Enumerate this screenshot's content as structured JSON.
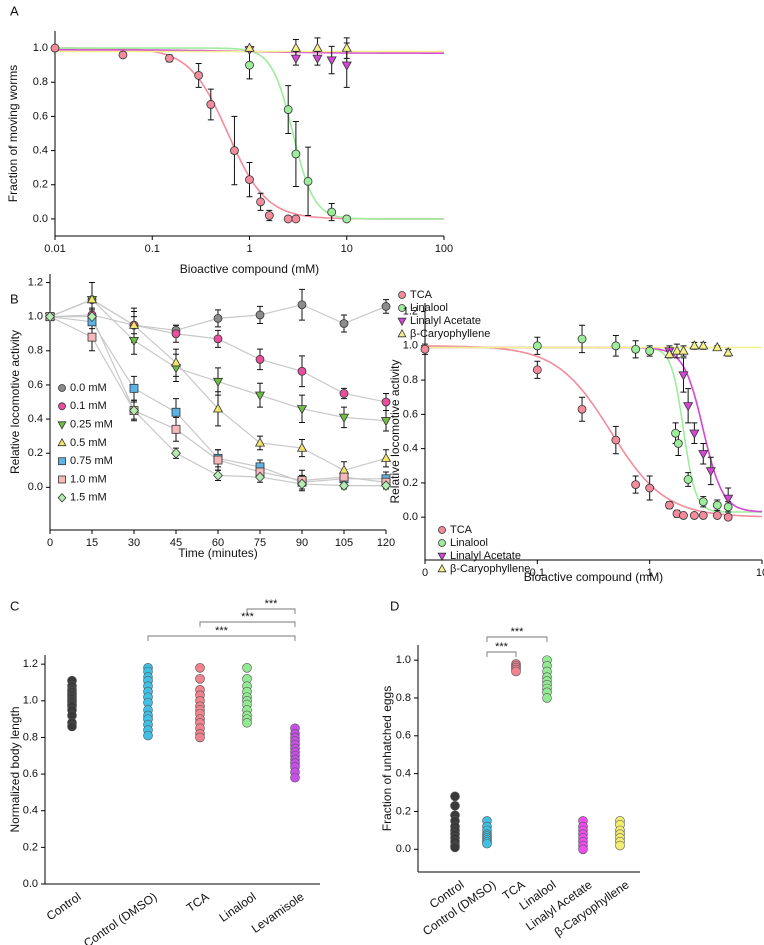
{
  "chart_data": [
    {
      "type": "scatter",
      "panel": "A",
      "x_label": "Bioactive compound (mM)",
      "y_label": "Fraction of moving worms",
      "xlog": true,
      "xlim": [
        0.01,
        100
      ],
      "xticks": [
        0.01,
        0.1,
        1,
        10,
        100
      ],
      "ylim": [
        -0.1,
        1.1
      ],
      "yticks": [
        {
          "value": 0,
          "label": "0.0"
        },
        0.2,
        0.4,
        0.6,
        0.8,
        {
          "value": 1,
          "label": "1.0"
        }
      ],
      "series": [
        {
          "name": "TCA",
          "color": "#f28b9b",
          "marker": "circle",
          "x": [
            0.01,
            0.05,
            0.15,
            0.3,
            0.4,
            0.7,
            1.0,
            1.3,
            1.6,
            2.5,
            3.0
          ],
          "values": [
            1.0,
            0.96,
            0.94,
            0.84,
            0.67,
            0.4,
            0.23,
            0.1,
            0.02,
            0.0,
            0.0
          ],
          "errors": [
            0.01,
            0.01,
            0.02,
            0.07,
            0.09,
            0.2,
            0.1,
            0.05,
            0.03,
            0.01,
            0.01
          ],
          "fit": {
            "top": 1,
            "bottom": 0,
            "ec50": 0.6,
            "slope": 2.2
          }
        },
        {
          "name": "Linalool",
          "color": "#9ded9d",
          "marker": "circle",
          "x": [
            1.0,
            2.5,
            3.0,
            4.0,
            7.0,
            10.0
          ],
          "values": [
            0.9,
            0.64,
            0.38,
            0.22,
            0.04,
            0.0
          ],
          "errors": [
            0.08,
            0.14,
            0.19,
            0.2,
            0.05,
            0.01
          ],
          "fit": {
            "top": 1,
            "bottom": 0,
            "ec50": 2.8,
            "slope": 4
          }
        },
        {
          "name": "Linalyl Acetate",
          "color": "#d447d4",
          "marker": "triangle-down",
          "x": [
            1.0,
            3.0,
            5.0,
            7.0,
            10.0
          ],
          "values": [
            0.99,
            0.94,
            0.94,
            0.93,
            0.9
          ],
          "errors": [
            0.01,
            0.04,
            0.04,
            0.08,
            0.13
          ],
          "fit": {
            "top": 0.99,
            "bottom": 0.97,
            "ec50": 1,
            "slope": 1
          }
        },
        {
          "name": "β-Caryophyllene",
          "color": "#f5f08a",
          "marker": "triangle-up",
          "x": [
            1.0,
            3.0,
            5.0,
            10.0
          ],
          "values": [
            1.0,
            1.0,
            1.0,
            1.0
          ],
          "errors": [
            0.01,
            0.05,
            0.06,
            0.06
          ],
          "fit": {
            "top": 0.98,
            "bottom": 0.98,
            "ec50": 1,
            "slope": 1
          }
        }
      ]
    },
    {
      "type": "line",
      "panel": "B",
      "x_label": "Time  (minutes)",
      "y_label": "Relative locomotive activity",
      "x": [
        0,
        15,
        30,
        45,
        60,
        75,
        90,
        105,
        120
      ],
      "xlim": [
        0,
        120
      ],
      "xticks": [
        0,
        15,
        30,
        45,
        60,
        75,
        90,
        105,
        120
      ],
      "ylim": [
        -0.25,
        1.25
      ],
      "yticks": [
        {
          "value": 0,
          "label": "0.0"
        },
        0.2,
        0.4,
        0.6,
        0.8,
        {
          "value": 1,
          "label": "1.0"
        },
        1.2
      ],
      "series": [
        {
          "name": "0.0 mM",
          "color": "#8c8c8c",
          "marker": "circle",
          "values": [
            1.0,
            1.1,
            0.95,
            0.92,
            0.99,
            1.01,
            1.07,
            0.96,
            1.06
          ],
          "errors": [
            0.01,
            0.1,
            0.05,
            0.03,
            0.05,
            0.05,
            0.09,
            0.05,
            0.04
          ]
        },
        {
          "name": "0.1 mM",
          "color": "#e8509e",
          "marker": "circle",
          "values": [
            1.0,
            1.01,
            0.95,
            0.9,
            0.87,
            0.75,
            0.68,
            0.55,
            0.5
          ],
          "errors": [
            0.01,
            0.08,
            0.08,
            0.05,
            0.05,
            0.06,
            0.09,
            0.03,
            0.05
          ]
        },
        {
          "name": "0.25 mM",
          "color": "#6fbe44",
          "marker": "triangle-down",
          "values": [
            1.0,
            1.1,
            0.86,
            0.7,
            0.62,
            0.54,
            0.46,
            0.41,
            0.39
          ],
          "errors": [
            0.01,
            0.1,
            0.08,
            0.08,
            0.08,
            0.07,
            0.08,
            0.06,
            0.06
          ]
        },
        {
          "name": "0.5 mM",
          "color": "#f3e46a",
          "marker": "triangle-up",
          "values": [
            1.0,
            1.1,
            0.95,
            0.73,
            0.46,
            0.26,
            0.23,
            0.1,
            0.17
          ],
          "errors": [
            0.01,
            0.1,
            0.1,
            0.08,
            0.1,
            0.04,
            0.05,
            0.05,
            0.05
          ]
        },
        {
          "name": "0.75 mM",
          "color": "#5bb4e5",
          "marker": "square",
          "values": [
            1.0,
            0.97,
            0.58,
            0.44,
            0.17,
            0.12,
            0.03,
            0.05,
            0.05
          ],
          "errors": [
            0.01,
            0.07,
            0.07,
            0.08,
            0.05,
            0.04,
            0.04,
            0.02,
            0.04
          ]
        },
        {
          "name": "1.0 mM",
          "color": "#f6b8b8",
          "marker": "square",
          "values": [
            1.0,
            0.88,
            0.45,
            0.34,
            0.16,
            0.09,
            0.04,
            0.06,
            0.03
          ],
          "errors": [
            0.01,
            0.08,
            0.06,
            0.07,
            0.06,
            0.04,
            0.06,
            0.03,
            0.03
          ]
        },
        {
          "name": "1.5 mM",
          "color": "#b4ecb4",
          "marker": "diamond",
          "values": [
            1.0,
            1.0,
            0.45,
            0.2,
            0.07,
            0.06,
            0.02,
            0.01,
            0.01
          ],
          "errors": [
            0.01,
            0.05,
            0.05,
            0.03,
            0.03,
            0.03,
            0.03,
            0.02,
            0.02
          ]
        }
      ]
    },
    {
      "type": "scatter",
      "x_label": "Bioactive compound (mM)",
      "y_label": "Relative locomotive activity",
      "xlog": true,
      "xlim": [
        0.01,
        10
      ],
      "xticks": [
        {
          "value": 0.01,
          "label": "0"
        },
        0.1,
        1,
        10
      ],
      "ylim": [
        -0.25,
        1.25
      ],
      "yticks": [
        {
          "value": 0,
          "label": "0.0"
        },
        0.2,
        0.4,
        0.6,
        0.8,
        {
          "value": 1,
          "label": "1.0"
        },
        1.2
      ],
      "series": [
        {
          "name": "TCA",
          "color": "#f28b9b",
          "marker": "circle",
          "x": [
            0.01,
            0.1,
            0.25,
            0.5,
            0.75,
            1.0,
            1.5,
            1.75,
            2.0,
            2.5,
            3.0,
            4.0,
            5.0
          ],
          "values": [
            0.98,
            0.86,
            0.63,
            0.45,
            0.19,
            0.17,
            0.07,
            0.02,
            0.01,
            0.01,
            0.01,
            0.01,
            0.0
          ],
          "errors": [
            0.03,
            0.05,
            0.07,
            0.08,
            0.05,
            0.07,
            0.02,
            0.02,
            0.01,
            0.01,
            0.01,
            0.01,
            0.01
          ],
          "fit": {
            "top": 1,
            "bottom": 0,
            "ec50": 0.45,
            "slope": 1.8
          }
        },
        {
          "name": "Linalool",
          "color": "#9ded9d",
          "marker": "circle",
          "x": [
            0.1,
            0.25,
            0.5,
            0.75,
            1.0,
            1.7,
            1.8,
            2.2,
            3.0,
            4.0,
            5.0
          ],
          "values": [
            1.0,
            1.04,
            1.0,
            0.98,
            0.97,
            0.49,
            0.43,
            0.22,
            0.09,
            0.07,
            0.06
          ],
          "errors": [
            0.05,
            0.08,
            0.06,
            0.05,
            0.03,
            0.06,
            0.07,
            0.04,
            0.03,
            0.03,
            0.03
          ],
          "fit": {
            "top": 0.99,
            "bottom": 0.03,
            "ec50": 2.0,
            "slope": 8
          }
        },
        {
          "name": "Linalyl Acetate",
          "color": "#d447d4",
          "marker": "triangle-down",
          "x": [
            1.5,
            2.0,
            2.2,
            2.5,
            3.0,
            3.5,
            5.0
          ],
          "values": [
            0.97,
            0.83,
            0.65,
            0.49,
            0.37,
            0.27,
            0.11
          ],
          "errors": [
            0.03,
            0.1,
            0.1,
            0.06,
            0.06,
            0.08,
            0.06
          ],
          "fit": {
            "top": 0.99,
            "bottom": 0.03,
            "ec50": 3.0,
            "slope": 5
          }
        },
        {
          "name": "β-Caryophyllene",
          "color": "#f5f08a",
          "marker": "triangle-up",
          "x": [
            1.5,
            1.75,
            2.0,
            2.5,
            3.0,
            4.0,
            5.0
          ],
          "values": [
            0.95,
            0.97,
            0.97,
            1.0,
            1.0,
            0.99,
            0.96
          ],
          "errors": [
            0.02,
            0.04,
            0.03,
            0.02,
            0.02,
            0.01,
            0.02
          ],
          "fit": {
            "top": 0.99,
            "bottom": 0.99,
            "ec50": 1,
            "slope": 1
          }
        }
      ]
    },
    {
      "type": "strip",
      "panel": "C",
      "y_label": "Normalized body length",
      "categories": [
        "Control",
        "Control (DMSO)",
        "TCA",
        "Linalool",
        "Levamisole"
      ],
      "colors": [
        "#3a3a3a",
        "#3fc0e4",
        "#f2828e",
        "#92ea92",
        "#c84ee8"
      ],
      "ylim": [
        0,
        1.25
      ],
      "yticks": [
        {
          "value": 0,
          "label": "0.0"
        },
        0.2,
        0.4,
        0.6,
        0.8,
        {
          "value": 1,
          "label": "1.0"
        },
        1.2
      ],
      "values": [
        [
          1.11,
          1.08,
          1.06,
          1.05,
          1.04,
          1.03,
          1.02,
          1.01,
          1.0,
          0.99,
          0.98,
          0.97,
          0.95,
          0.92,
          0.88,
          0.86
        ],
        [
          1.18,
          1.16,
          1.13,
          1.11,
          1.08,
          1.05,
          1.02,
          0.99,
          0.95,
          0.92,
          0.9,
          0.87,
          0.84,
          0.81
        ],
        [
          1.18,
          1.12,
          1.06,
          1.03,
          1.0,
          0.97,
          0.95,
          0.93,
          0.9,
          0.88,
          0.85,
          0.82,
          0.8
        ],
        [
          1.18,
          1.12,
          1.08,
          1.05,
          1.02,
          1.0,
          0.98,
          0.95,
          0.92,
          0.9,
          0.88
        ],
        [
          0.85,
          0.82,
          0.8,
          0.78,
          0.76,
          0.74,
          0.72,
          0.7,
          0.68,
          0.66,
          0.64,
          0.61,
          0.58
        ]
      ],
      "annotations": [
        {
          "text": "***",
          "from": "Linalool",
          "to": "Levamisole"
        },
        {
          "text": "***",
          "from": "TCA",
          "to": "Levamisole"
        },
        {
          "text": "***",
          "from": "Control (DMSO)",
          "to": "Levamisole"
        }
      ]
    },
    {
      "type": "strip",
      "panel": "D",
      "y_label": "Fraction of unhatched eggs",
      "categories": [
        "Control",
        "Control (DMSO)",
        "TCA",
        "Linalool",
        "Linalyl Acetate",
        "β-Caryophyllene"
      ],
      "colors": [
        "#3a3a3a",
        "#3fc0e4",
        "#f2828e",
        "#92ea92",
        "#ee4eee",
        "#f4ee70"
      ],
      "ylim": [
        -0.12,
        1.08
      ],
      "yticks": [
        {
          "value": 0,
          "label": "0.0"
        },
        0.2,
        0.4,
        0.6,
        0.8,
        {
          "value": 1,
          "label": "1.0"
        }
      ],
      "values": [
        [
          0.28,
          0.23,
          0.18,
          0.15,
          0.12,
          0.1,
          0.08,
          0.06,
          0.04,
          0.02,
          0.01
        ],
        [
          0.15,
          0.12,
          0.1,
          0.08,
          0.07,
          0.06,
          0.05,
          0.04,
          0.03
        ],
        [
          0.98,
          0.97,
          0.96,
          0.95,
          0.94
        ],
        [
          1.0,
          0.97,
          0.94,
          0.91,
          0.89,
          0.87,
          0.85,
          0.83,
          0.8
        ],
        [
          0.15,
          0.12,
          0.1,
          0.08,
          0.06,
          0.04,
          0.02,
          0.0
        ],
        [
          0.15,
          0.13,
          0.1,
          0.08,
          0.06,
          0.04,
          0.02
        ]
      ],
      "annotations": [
        {
          "text": "***",
          "from": "Control (DMSO)",
          "to": "Linalool"
        },
        {
          "text": "***",
          "from": "Control (DMSO)",
          "to": "TCA"
        }
      ]
    }
  ]
}
